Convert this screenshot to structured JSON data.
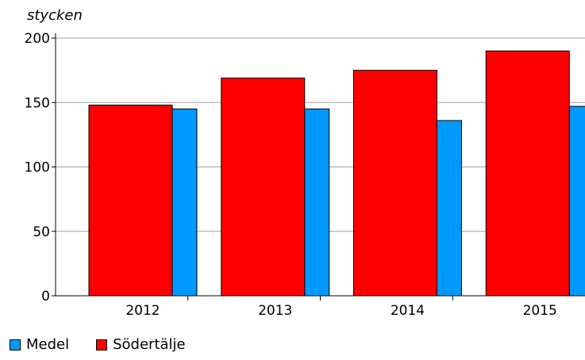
{
  "chart_data": {
    "type": "bar",
    "title": "",
    "unit_label": "stycken",
    "xlabel": "",
    "ylabel": "",
    "categories": [
      "2012",
      "2013",
      "2014",
      "2015"
    ],
    "series": [
      {
        "name": "Södertälje",
        "color": "#ff0000",
        "values": [
          148,
          169,
          175,
          190
        ]
      },
      {
        "name": "Medel",
        "color": "#0099ff",
        "values": [
          145,
          145,
          136,
          147
        ]
      }
    ],
    "ylim": [
      0,
      200
    ],
    "yticks": [
      "0",
      "50",
      "100",
      "150",
      "200"
    ],
    "grid": true,
    "legend": [
      "Medel",
      "Södertälje"
    ],
    "legend_position": "bottom-left"
  }
}
